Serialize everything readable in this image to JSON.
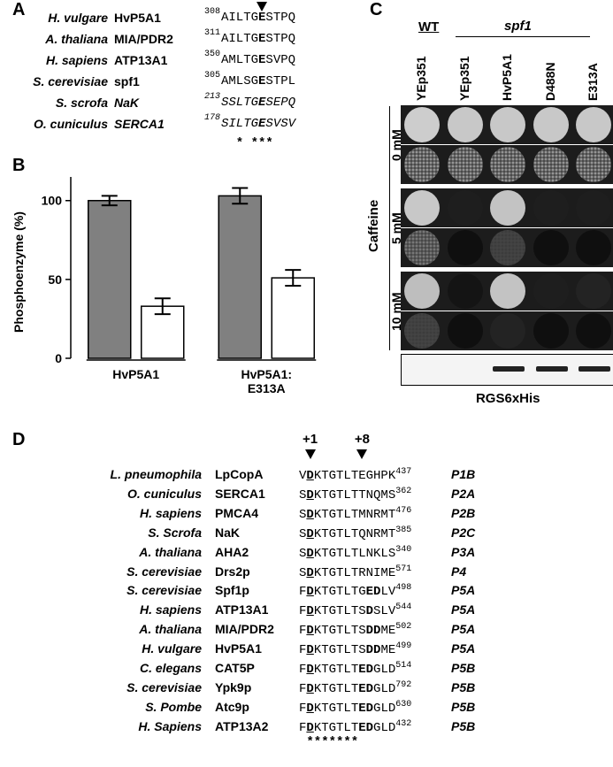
{
  "panel_labels": [
    "A",
    "B",
    "C",
    "D"
  ],
  "panel_a": {
    "rows": [
      {
        "species": "H. vulgare",
        "protein": "HvP5A1",
        "start": 308,
        "seq": [
          "AILTG",
          "E",
          "STPQ"
        ]
      },
      {
        "species": "A. thaliana",
        "protein": "MIA/PDR2",
        "start": 311,
        "seq": [
          "AILTG",
          "E",
          "STPQ"
        ]
      },
      {
        "species": "H. sapiens",
        "protein": "ATP13A1",
        "start": 350,
        "seq": [
          "AMLTG",
          "E",
          "SVPQ"
        ]
      },
      {
        "species": "S. cerevisiae",
        "protein": "spf1",
        "start": 305,
        "seq": [
          "AMLSG",
          "E",
          "STPL"
        ]
      },
      {
        "species": "S. scrofa",
        "protein": "NaK",
        "start": 213,
        "seq": [
          "SSLTG",
          "E",
          "SEPQ"
        ],
        "italic": true
      },
      {
        "species": "O. cuniculus",
        "protein": "SERCA1",
        "start": 178,
        "seq": [
          "SILTG",
          "E",
          "SVSV"
        ],
        "italic": true
      }
    ],
    "conservation": "  * ***"
  },
  "chart_data": {
    "type": "bar",
    "ylabel": "Phosphoenzyme (%)",
    "categories": [
      "HvP5A1",
      "HvP5A1:\nE313A"
    ],
    "series": [
      {
        "color": "#808080",
        "values": [
          100,
          103
        ],
        "errors": [
          3,
          5
        ]
      },
      {
        "color": "#ffffff",
        "values": [
          33,
          51
        ],
        "errors": [
          5,
          5
        ]
      }
    ],
    "ylim": [
      0,
      115
    ],
    "yticks": [
      0,
      50,
      100
    ]
  },
  "panel_c": {
    "wt": "WT",
    "mutant": "spf1",
    "columns": [
      "YEp351",
      "YEp351",
      "HvP5A1",
      "D488N",
      "E313A"
    ],
    "treatment": "Caffeine",
    "concentrations": [
      "0 mM",
      "5 mM",
      "10 mM"
    ],
    "blot_label": "RGS6xHis"
  },
  "panel_d": {
    "markers": [
      "+1",
      "+8"
    ],
    "rows": [
      {
        "species": "L. pneumophila",
        "protein": "LpCopA",
        "seq": [
          "V",
          "D",
          "KTGTLTEGHPK"
        ],
        "end": 437,
        "family": "P1B"
      },
      {
        "species": "O. cuniculus",
        "protein": "SERCA1",
        "seq": [
          "S",
          "D",
          "KTGTLTTNQMS"
        ],
        "end": 362,
        "family": "P2A"
      },
      {
        "species": "H. sapiens",
        "protein": "PMCA4",
        "seq": [
          "S",
          "D",
          "KTGTLTMNRMT"
        ],
        "end": 476,
        "family": "P2B"
      },
      {
        "species": "S. Scrofa",
        "protein": "NaK",
        "seq": [
          "S",
          "D",
          "KTGTLTQNRMT"
        ],
        "end": 385,
        "family": "P2C"
      },
      {
        "species": "A. thaliana",
        "protein": "AHA2",
        "seq": [
          "S",
          "D",
          "KTGTLTLNKLS"
        ],
        "end": 340,
        "family": "P3A"
      },
      {
        "species": "S. cerevisiae",
        "protein": "Drs2p",
        "seq": [
          "S",
          "D",
          "KTGTLTRNIME"
        ],
        "end": 571,
        "family": "P4"
      },
      {
        "species": "S. cerevisiae",
        "protein": "Spf1p",
        "seq": [
          "F",
          "D",
          "KTGTLTG",
          "ED",
          "LV"
        ],
        "end": 498,
        "family": "P5A"
      },
      {
        "species": "H. sapiens",
        "protein": "ATP13A1",
        "seq": [
          "F",
          "D",
          "KTGTLTS",
          "D",
          "SLV"
        ],
        "end": 544,
        "family": "P5A"
      },
      {
        "species": "A. thaliana",
        "protein": "MIA/PDR2",
        "seq": [
          "F",
          "D",
          "KTGTLTS",
          "DD",
          "ME"
        ],
        "end": 502,
        "family": "P5A"
      },
      {
        "species": "H. vulgare",
        "protein": "HvP5A1",
        "seq": [
          "F",
          "D",
          "KTGTLTS",
          "DD",
          "ME"
        ],
        "end": 499,
        "family": "P5A"
      },
      {
        "species": "C. elegans",
        "protein": "CAT5P",
        "seq": [
          "F",
          "D",
          "KTGTLT",
          "ED",
          "GLD"
        ],
        "end": 514,
        "family": "P5B"
      },
      {
        "species": "S. cerevisiae",
        "protein": "Ypk9p",
        "seq": [
          "F",
          "D",
          "KTGTLT",
          "ED",
          "GLD"
        ],
        "end": 792,
        "family": "P5B"
      },
      {
        "species": "S. Pombe",
        "protein": "Atc9p",
        "seq": [
          "F",
          "D",
          "KTGTLT",
          "ED",
          "GLD"
        ],
        "end": 630,
        "family": "P5B"
      },
      {
        "species": "H. Sapiens",
        "protein": "ATP13A2",
        "seq": [
          "F",
          "D",
          "KTGTLT",
          "ED",
          "GLD"
        ],
        "end": 432,
        "family": "P5B"
      }
    ],
    "conservation": " *******"
  }
}
